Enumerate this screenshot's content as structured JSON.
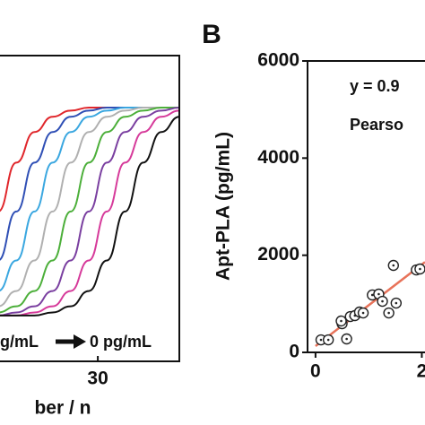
{
  "chart_data": [
    {
      "type": "line",
      "x_label": "ber / n",
      "annotation_left": "g/mL",
      "annotation_right": "0 pg/mL",
      "x": [
        19,
        21,
        23,
        25,
        27,
        29,
        31,
        33,
        35,
        37,
        39
      ],
      "xlim": [
        19,
        39
      ],
      "xticks": [
        30
      ],
      "ylim": [
        0,
        1
      ],
      "series": [
        {
          "color": "#e0262b",
          "values": [
            0.49,
            0.65,
            0.75,
            0.8,
            0.82,
            0.83,
            0.83,
            0.83,
            0.83,
            0.83,
            0.83
          ]
        },
        {
          "color": "#2f4fb5",
          "values": [
            0.33,
            0.49,
            0.65,
            0.75,
            0.8,
            0.82,
            0.83,
            0.83,
            0.83,
            0.83,
            0.83
          ]
        },
        {
          "color": "#3aa7e0",
          "values": [
            0.23,
            0.33,
            0.49,
            0.65,
            0.75,
            0.8,
            0.82,
            0.83,
            0.83,
            0.83,
            0.83
          ]
        },
        {
          "color": "#b0b0b0",
          "values": [
            0.18,
            0.23,
            0.33,
            0.49,
            0.65,
            0.75,
            0.8,
            0.82,
            0.83,
            0.83,
            0.83
          ]
        },
        {
          "color": "#4caf3a",
          "values": [
            0.16,
            0.18,
            0.23,
            0.33,
            0.49,
            0.65,
            0.75,
            0.8,
            0.82,
            0.83,
            0.83
          ]
        },
        {
          "color": "#7a3fa0",
          "values": [
            0.15,
            0.16,
            0.18,
            0.23,
            0.33,
            0.49,
            0.65,
            0.75,
            0.8,
            0.82,
            0.83
          ]
        },
        {
          "color": "#d63a9a",
          "values": [
            0.15,
            0.15,
            0.16,
            0.18,
            0.23,
            0.33,
            0.49,
            0.65,
            0.75,
            0.8,
            0.82
          ]
        },
        {
          "color": "#111111",
          "values": [
            0.15,
            0.15,
            0.15,
            0.16,
            0.18,
            0.23,
            0.33,
            0.49,
            0.65,
            0.75,
            0.8
          ]
        }
      ]
    },
    {
      "type": "scatter",
      "panel_label": "B",
      "y_label": "Apt-PLA (pg/mL)",
      "annotation_equation": "y = 0.9",
      "annotation_pearson": "Pearso",
      "xlim": [
        -150,
        2060
      ],
      "xticks": [
        0,
        {
          "value": 2000,
          "label": "2"
        }
      ],
      "ylim": [
        0,
        6000
      ],
      "yticks": [
        0,
        2000,
        4000,
        6000
      ],
      "marker_color": "#222222",
      "x": [
        103,
        241,
        500,
        483,
        586,
        655,
        741,
        828,
        897,
        1069,
        1190,
        1259,
        1379,
        1466,
        1517,
        1897,
        1966
      ],
      "values": [
        258,
        258,
        591,
        646,
        277,
        738,
        757,
        831,
        812,
        1182,
        1200,
        1052,
        812,
        1791,
        1015,
        1698,
        1717
      ],
      "fit": {
        "color": "#e8735a",
        "x": [
          0,
          2060
        ],
        "values": [
          130,
          1860
        ]
      }
    }
  ]
}
